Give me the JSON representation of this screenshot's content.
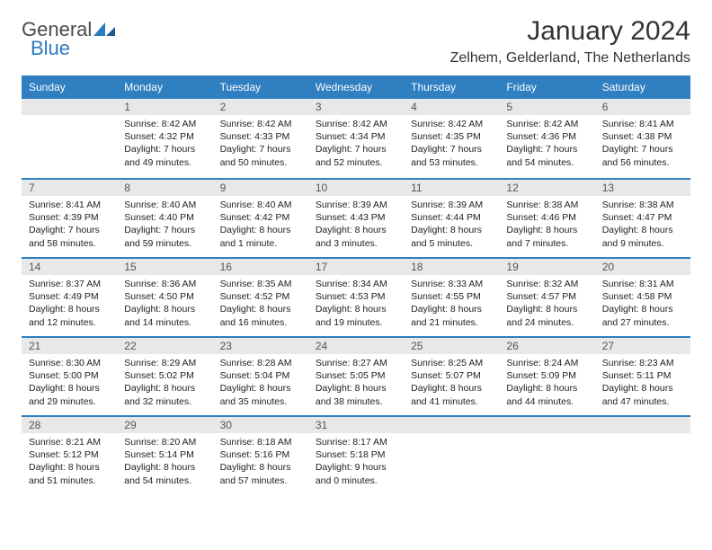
{
  "brand": {
    "word1": "General",
    "word2": "Blue"
  },
  "title": "January 2024",
  "location": "Zelhem, Gelderland, The Netherlands",
  "colors": {
    "header_bg": "#2f7fc1",
    "header_text": "#ffffff",
    "daynum_bg": "#e8e8e8",
    "rule": "#2f7fc1",
    "logo_gray": "#4a4a4a",
    "logo_blue": "#2b7bbf"
  },
  "fonts": {
    "title_size": 30,
    "location_size": 16,
    "dow_size": 12,
    "cell_size": 10.5
  },
  "dow": [
    "Sunday",
    "Monday",
    "Tuesday",
    "Wednesday",
    "Thursday",
    "Friday",
    "Saturday"
  ],
  "weeks": [
    [
      null,
      {
        "n": "1",
        "sunrise": "Sunrise: 8:42 AM",
        "sunset": "Sunset: 4:32 PM",
        "dl1": "Daylight: 7 hours",
        "dl2": "and 49 minutes."
      },
      {
        "n": "2",
        "sunrise": "Sunrise: 8:42 AM",
        "sunset": "Sunset: 4:33 PM",
        "dl1": "Daylight: 7 hours",
        "dl2": "and 50 minutes."
      },
      {
        "n": "3",
        "sunrise": "Sunrise: 8:42 AM",
        "sunset": "Sunset: 4:34 PM",
        "dl1": "Daylight: 7 hours",
        "dl2": "and 52 minutes."
      },
      {
        "n": "4",
        "sunrise": "Sunrise: 8:42 AM",
        "sunset": "Sunset: 4:35 PM",
        "dl1": "Daylight: 7 hours",
        "dl2": "and 53 minutes."
      },
      {
        "n": "5",
        "sunrise": "Sunrise: 8:42 AM",
        "sunset": "Sunset: 4:36 PM",
        "dl1": "Daylight: 7 hours",
        "dl2": "and 54 minutes."
      },
      {
        "n": "6",
        "sunrise": "Sunrise: 8:41 AM",
        "sunset": "Sunset: 4:38 PM",
        "dl1": "Daylight: 7 hours",
        "dl2": "and 56 minutes."
      }
    ],
    [
      {
        "n": "7",
        "sunrise": "Sunrise: 8:41 AM",
        "sunset": "Sunset: 4:39 PM",
        "dl1": "Daylight: 7 hours",
        "dl2": "and 58 minutes."
      },
      {
        "n": "8",
        "sunrise": "Sunrise: 8:40 AM",
        "sunset": "Sunset: 4:40 PM",
        "dl1": "Daylight: 7 hours",
        "dl2": "and 59 minutes."
      },
      {
        "n": "9",
        "sunrise": "Sunrise: 8:40 AM",
        "sunset": "Sunset: 4:42 PM",
        "dl1": "Daylight: 8 hours",
        "dl2": "and 1 minute."
      },
      {
        "n": "10",
        "sunrise": "Sunrise: 8:39 AM",
        "sunset": "Sunset: 4:43 PM",
        "dl1": "Daylight: 8 hours",
        "dl2": "and 3 minutes."
      },
      {
        "n": "11",
        "sunrise": "Sunrise: 8:39 AM",
        "sunset": "Sunset: 4:44 PM",
        "dl1": "Daylight: 8 hours",
        "dl2": "and 5 minutes."
      },
      {
        "n": "12",
        "sunrise": "Sunrise: 8:38 AM",
        "sunset": "Sunset: 4:46 PM",
        "dl1": "Daylight: 8 hours",
        "dl2": "and 7 minutes."
      },
      {
        "n": "13",
        "sunrise": "Sunrise: 8:38 AM",
        "sunset": "Sunset: 4:47 PM",
        "dl1": "Daylight: 8 hours",
        "dl2": "and 9 minutes."
      }
    ],
    [
      {
        "n": "14",
        "sunrise": "Sunrise: 8:37 AM",
        "sunset": "Sunset: 4:49 PM",
        "dl1": "Daylight: 8 hours",
        "dl2": "and 12 minutes."
      },
      {
        "n": "15",
        "sunrise": "Sunrise: 8:36 AM",
        "sunset": "Sunset: 4:50 PM",
        "dl1": "Daylight: 8 hours",
        "dl2": "and 14 minutes."
      },
      {
        "n": "16",
        "sunrise": "Sunrise: 8:35 AM",
        "sunset": "Sunset: 4:52 PM",
        "dl1": "Daylight: 8 hours",
        "dl2": "and 16 minutes."
      },
      {
        "n": "17",
        "sunrise": "Sunrise: 8:34 AM",
        "sunset": "Sunset: 4:53 PM",
        "dl1": "Daylight: 8 hours",
        "dl2": "and 19 minutes."
      },
      {
        "n": "18",
        "sunrise": "Sunrise: 8:33 AM",
        "sunset": "Sunset: 4:55 PM",
        "dl1": "Daylight: 8 hours",
        "dl2": "and 21 minutes."
      },
      {
        "n": "19",
        "sunrise": "Sunrise: 8:32 AM",
        "sunset": "Sunset: 4:57 PM",
        "dl1": "Daylight: 8 hours",
        "dl2": "and 24 minutes."
      },
      {
        "n": "20",
        "sunrise": "Sunrise: 8:31 AM",
        "sunset": "Sunset: 4:58 PM",
        "dl1": "Daylight: 8 hours",
        "dl2": "and 27 minutes."
      }
    ],
    [
      {
        "n": "21",
        "sunrise": "Sunrise: 8:30 AM",
        "sunset": "Sunset: 5:00 PM",
        "dl1": "Daylight: 8 hours",
        "dl2": "and 29 minutes."
      },
      {
        "n": "22",
        "sunrise": "Sunrise: 8:29 AM",
        "sunset": "Sunset: 5:02 PM",
        "dl1": "Daylight: 8 hours",
        "dl2": "and 32 minutes."
      },
      {
        "n": "23",
        "sunrise": "Sunrise: 8:28 AM",
        "sunset": "Sunset: 5:04 PM",
        "dl1": "Daylight: 8 hours",
        "dl2": "and 35 minutes."
      },
      {
        "n": "24",
        "sunrise": "Sunrise: 8:27 AM",
        "sunset": "Sunset: 5:05 PM",
        "dl1": "Daylight: 8 hours",
        "dl2": "and 38 minutes."
      },
      {
        "n": "25",
        "sunrise": "Sunrise: 8:25 AM",
        "sunset": "Sunset: 5:07 PM",
        "dl1": "Daylight: 8 hours",
        "dl2": "and 41 minutes."
      },
      {
        "n": "26",
        "sunrise": "Sunrise: 8:24 AM",
        "sunset": "Sunset: 5:09 PM",
        "dl1": "Daylight: 8 hours",
        "dl2": "and 44 minutes."
      },
      {
        "n": "27",
        "sunrise": "Sunrise: 8:23 AM",
        "sunset": "Sunset: 5:11 PM",
        "dl1": "Daylight: 8 hours",
        "dl2": "and 47 minutes."
      }
    ],
    [
      {
        "n": "28",
        "sunrise": "Sunrise: 8:21 AM",
        "sunset": "Sunset: 5:12 PM",
        "dl1": "Daylight: 8 hours",
        "dl2": "and 51 minutes."
      },
      {
        "n": "29",
        "sunrise": "Sunrise: 8:20 AM",
        "sunset": "Sunset: 5:14 PM",
        "dl1": "Daylight: 8 hours",
        "dl2": "and 54 minutes."
      },
      {
        "n": "30",
        "sunrise": "Sunrise: 8:18 AM",
        "sunset": "Sunset: 5:16 PM",
        "dl1": "Daylight: 8 hours",
        "dl2": "and 57 minutes."
      },
      {
        "n": "31",
        "sunrise": "Sunrise: 8:17 AM",
        "sunset": "Sunset: 5:18 PM",
        "dl1": "Daylight: 9 hours",
        "dl2": "and 0 minutes."
      },
      null,
      null,
      null
    ]
  ]
}
